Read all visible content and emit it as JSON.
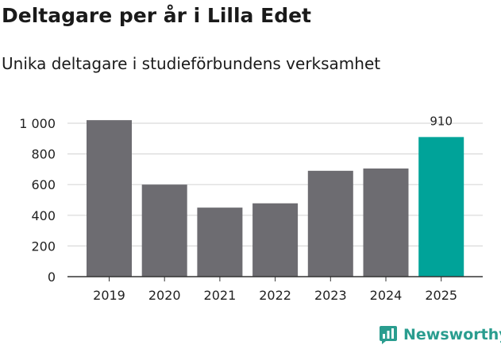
{
  "header": {
    "title": "Deltagare per år i Lilla Edet",
    "subtitle": "Unika deltagare i studieförbundens verksamhet"
  },
  "brand": {
    "name": "Newsworthy",
    "icon": "newsworthy-logo-icon",
    "color": "#2a9d8f"
  },
  "chart_data": {
    "type": "bar",
    "title": "Deltagare per år i Lilla Edet",
    "subtitle": "Unika deltagare i studieförbundens verksamhet",
    "xlabel": "",
    "ylabel": "",
    "categories": [
      "2019",
      "2020",
      "2021",
      "2022",
      "2023",
      "2024",
      "2025"
    ],
    "values": [
      1020,
      600,
      450,
      478,
      690,
      705,
      910
    ],
    "ylim": [
      0,
      1000
    ],
    "yticks": [
      0,
      200,
      400,
      600,
      800,
      1000
    ],
    "ytick_labels": [
      "0",
      "200",
      "400",
      "600",
      "800",
      "1 000"
    ],
    "grid": true,
    "highlight_index": 6,
    "data_labels": [
      {
        "index": 6,
        "text": "910"
      }
    ],
    "colors": {
      "default": "#6d6c71",
      "highlight": "#00a399",
      "grid": "#d9d9d9",
      "axis": "#333333"
    }
  }
}
